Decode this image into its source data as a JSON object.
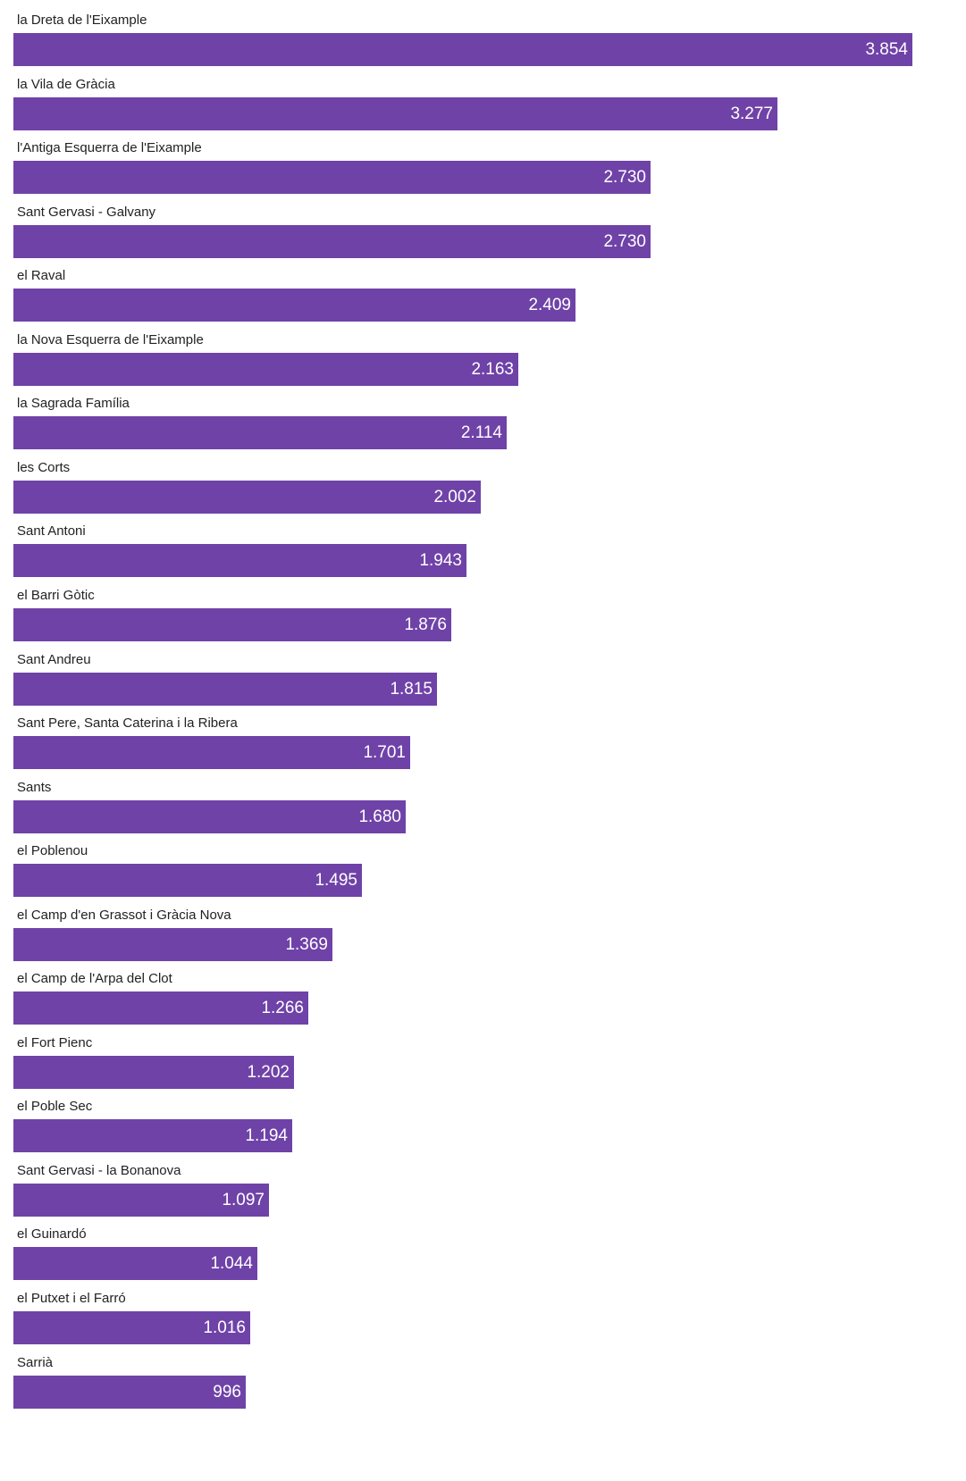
{
  "chart_data": {
    "type": "bar",
    "orientation": "horizontal",
    "bar_color": "#6f42a8",
    "value_label_color": "#ffffff",
    "categories": [
      "la Dreta de l'Eixample",
      "la Vila de Gràcia",
      "l'Antiga Esquerra de l'Eixample",
      "Sant Gervasi - Galvany",
      "el Raval",
      "la Nova Esquerra de l'Eixample",
      "la Sagrada Família",
      "les Corts",
      "Sant Antoni",
      "el Barri Gòtic",
      "Sant Andreu",
      "Sant Pere, Santa Caterina i la Ribera",
      "Sants",
      "el Poblenou",
      "el Camp d'en Grassot i Gràcia Nova",
      "el Camp de l'Arpa del Clot",
      "el Fort Pienc",
      "el Poble Sec",
      "Sant Gervasi - la Bonanova",
      "el Guinardó",
      "el Putxet i el Farró",
      "Sarrià"
    ],
    "values": [
      3854,
      3277,
      2730,
      2730,
      2409,
      2163,
      2114,
      2002,
      1943,
      1876,
      1815,
      1701,
      1680,
      1495,
      1369,
      1266,
      1202,
      1194,
      1097,
      1044,
      1016,
      996
    ],
    "value_labels": [
      "3.854",
      "3.277",
      "2.730",
      "2.730",
      "2.409",
      "2.163",
      "2.114",
      "2.002",
      "1.943",
      "1.876",
      "1.815",
      "1.701",
      "1.680",
      "1.495",
      "1.369",
      "1.266",
      "1.202",
      "1.194",
      "1.097",
      "1.044",
      "1.016",
      "996"
    ],
    "xlim": [
      0,
      3854
    ],
    "grid": false,
    "legend": "none"
  }
}
